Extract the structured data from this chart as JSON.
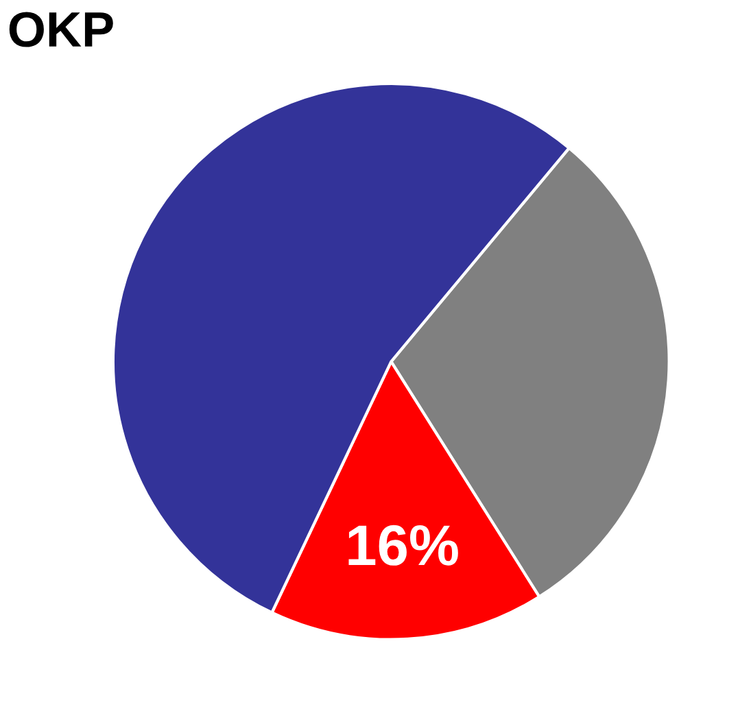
{
  "chart_data": {
    "type": "pie",
    "title": "OKP",
    "categories": [
      null,
      null,
      null
    ],
    "values": [
      30,
      16,
      54
    ],
    "colors": [
      "#808080",
      "#ff0000",
      "#333399"
    ],
    "value_labels": [
      null,
      "16%",
      null
    ]
  }
}
